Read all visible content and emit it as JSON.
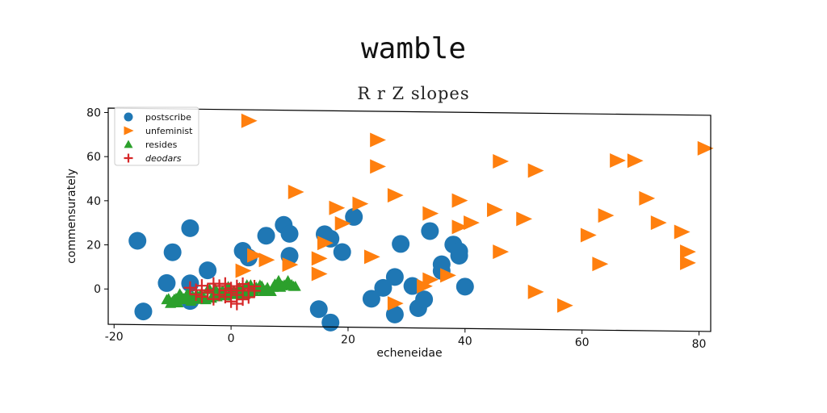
{
  "chart_data": {
    "type": "scatter",
    "title": "wamble",
    "subtitle": "R r Z slopes",
    "xlabel": "echeneidae",
    "ylabel": "commensurately",
    "xlim": [
      -21,
      82
    ],
    "ylim": [
      -16,
      82
    ],
    "xticks": [
      -20,
      0,
      20,
      40,
      60,
      80
    ],
    "yticks": [
      0,
      20,
      40,
      60,
      80
    ],
    "grid": false,
    "legend_position": "upper-left",
    "series": [
      {
        "name": "postscribe",
        "marker": "circle",
        "color": "#1f77b4",
        "points": [
          [
            -16,
            22
          ],
          [
            -15,
            -10
          ],
          [
            -10,
            17
          ],
          [
            -11,
            3
          ],
          [
            -7,
            28
          ],
          [
            -7,
            3
          ],
          [
            -4,
            9
          ],
          [
            -7,
            -5
          ],
          [
            2,
            18
          ],
          [
            3,
            15
          ],
          [
            6,
            25
          ],
          [
            9,
            30
          ],
          [
            10,
            26
          ],
          [
            10,
            16
          ],
          [
            16,
            26
          ],
          [
            17,
            24
          ],
          [
            19,
            18
          ],
          [
            21,
            34
          ],
          [
            24,
            -3
          ],
          [
            26,
            2
          ],
          [
            28,
            7
          ],
          [
            28,
            -10
          ],
          [
            29,
            22
          ],
          [
            31,
            3
          ],
          [
            32,
            -7
          ],
          [
            33,
            -3
          ],
          [
            34,
            28
          ],
          [
            36,
            13
          ],
          [
            36,
            10
          ],
          [
            38,
            22
          ],
          [
            39,
            17
          ],
          [
            39,
            19
          ],
          [
            40,
            3
          ],
          [
            15,
            -8
          ],
          [
            17,
            -14
          ]
        ]
      },
      {
        "name": "unfeminist",
        "marker": "triangle-right",
        "color": "#ff7f0e",
        "points": [
          [
            3,
            77
          ],
          [
            2,
            9
          ],
          [
            4,
            16
          ],
          [
            6,
            14
          ],
          [
            10,
            12
          ],
          [
            11,
            45
          ],
          [
            15,
            15
          ],
          [
            15,
            8
          ],
          [
            16,
            22
          ],
          [
            18,
            38
          ],
          [
            19,
            31
          ],
          [
            22,
            40
          ],
          [
            24,
            16
          ],
          [
            25,
            69
          ],
          [
            25,
            57
          ],
          [
            28,
            44
          ],
          [
            28,
            -5
          ],
          [
            33,
            3
          ],
          [
            34,
            6
          ],
          [
            34,
            36
          ],
          [
            37,
            8
          ],
          [
            39,
            42
          ],
          [
            39,
            30
          ],
          [
            41,
            32
          ],
          [
            45,
            38
          ],
          [
            46,
            19
          ],
          [
            46,
            60
          ],
          [
            50,
            34
          ],
          [
            52,
            56
          ],
          [
            52,
            1
          ],
          [
            57,
            -5
          ],
          [
            61,
            27
          ],
          [
            63,
            14
          ],
          [
            64,
            36
          ],
          [
            66,
            61
          ],
          [
            69,
            61
          ],
          [
            71,
            44
          ],
          [
            73,
            33
          ],
          [
            77,
            29
          ],
          [
            78,
            20
          ],
          [
            78,
            15
          ],
          [
            81,
            67
          ]
        ]
      },
      {
        "name": "resides",
        "marker": "triangle-up",
        "color": "#2ca02c",
        "band": {
          "x_start": -11,
          "x_end": 11,
          "y_start_low": -7,
          "y_start_high": -2,
          "y_end_low": 1,
          "y_end_high": 6,
          "count": 70
        }
      },
      {
        "name": "deodars",
        "marker": "plus",
        "color": "#d62728",
        "points": [
          [
            -7,
            1
          ],
          [
            -6,
            -2
          ],
          [
            -5,
            2
          ],
          [
            -4,
            -1
          ],
          [
            -4,
            0
          ],
          [
            -3,
            -4
          ],
          [
            -2,
            2
          ],
          [
            -2,
            -2
          ],
          [
            -1,
            0
          ],
          [
            -1,
            -3
          ],
          [
            0,
            1
          ],
          [
            0,
            -1
          ],
          [
            0,
            -5
          ],
          [
            1,
            2
          ],
          [
            1,
            -2
          ],
          [
            2,
            0
          ],
          [
            2,
            -4
          ],
          [
            3,
            1
          ],
          [
            3,
            -3
          ],
          [
            -3,
            3
          ],
          [
            4,
            0
          ],
          [
            -5,
            -3
          ],
          [
            1,
            -6
          ],
          [
            -1,
            3
          ],
          [
            2,
            3
          ],
          [
            4,
            2
          ],
          [
            -6,
            0
          ],
          [
            0,
            0
          ]
        ]
      }
    ]
  }
}
